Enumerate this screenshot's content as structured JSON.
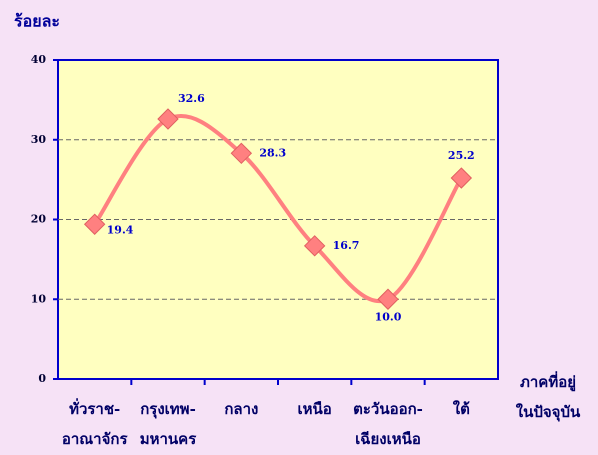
{
  "chart_data": {
    "type": "line",
    "y_label": "ร้อยละ",
    "x_label": [
      "ภาคที่อยู่",
      "ในปัจจุบัน"
    ],
    "categories": [
      [
        "ทั่วราช-",
        "อาณาจักร"
      ],
      [
        "กรุงเทพ-",
        "มหานคร"
      ],
      [
        "กลาง"
      ],
      [
        "เหนือ"
      ],
      [
        "ตะวันออก-",
        "เฉียงเหนือ"
      ],
      [
        "ใต้"
      ]
    ],
    "values": [
      19.4,
      32.6,
      28.3,
      16.7,
      10,
      25.2
    ],
    "value_labels": [
      "19.4",
      "32.6",
      "28.3",
      "16.7",
      "10.0",
      "25.2"
    ],
    "color": "#ff8080",
    "ylim": [
      0,
      40
    ],
    "yticks": [
      0,
      10,
      20,
      30,
      40
    ],
    "grid": true
  }
}
